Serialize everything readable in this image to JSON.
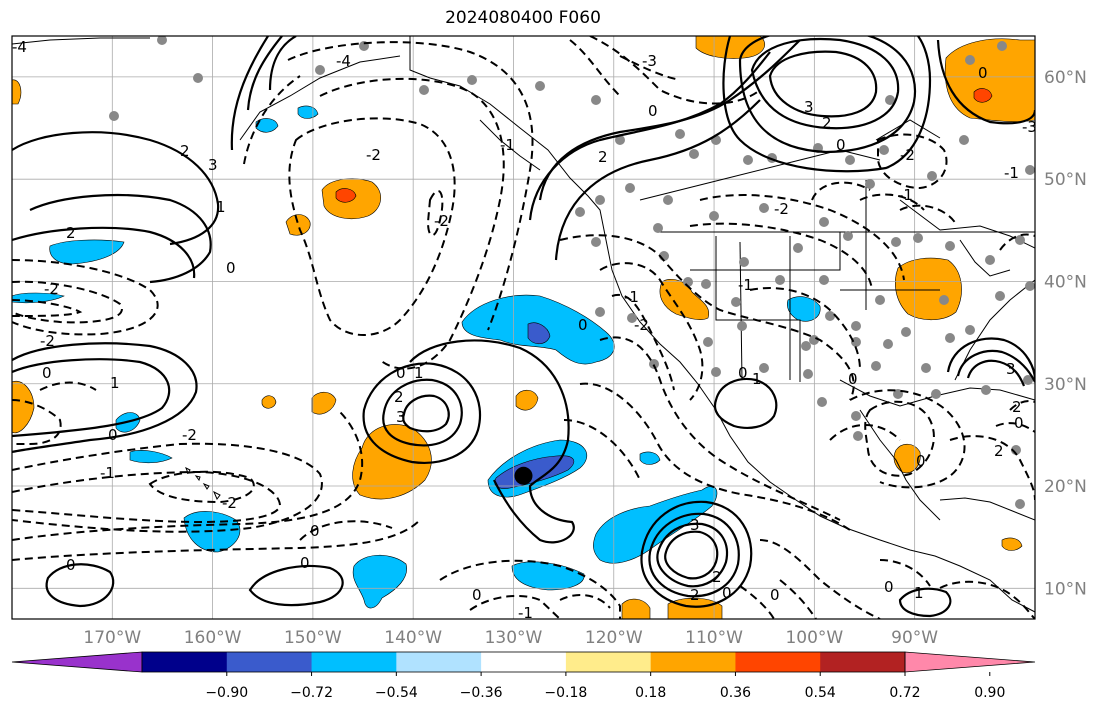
{
  "title": "2024080400 F060",
  "map": {
    "projection": "PlateCarree",
    "lon_range": [
      -180,
      -78
    ],
    "lat_range": [
      7,
      64
    ],
    "gridlines": true,
    "lon_ticks": [
      {
        "lon": -170,
        "label": "170°W"
      },
      {
        "lon": -160,
        "label": "160°W"
      },
      {
        "lon": -150,
        "label": "150°W"
      },
      {
        "lon": -140,
        "label": "140°W"
      },
      {
        "lon": -130,
        "label": "130°W"
      },
      {
        "lon": -120,
        "label": "120°W"
      },
      {
        "lon": -110,
        "label": "110°W"
      },
      {
        "lon": -100,
        "label": "100°W"
      },
      {
        "lon": -90,
        "label": "90°W"
      }
    ],
    "lat_ticks": [
      {
        "lat": 10,
        "label": "10°N"
      },
      {
        "lat": 20,
        "label": "20°N"
      },
      {
        "lat": 30,
        "label": "30°N"
      },
      {
        "lat": 40,
        "label": "40°N"
      },
      {
        "lat": 50,
        "label": "50°N"
      },
      {
        "lat": 60,
        "label": "60°N"
      }
    ],
    "marker": {
      "lon": -129,
      "lat": 21,
      "color": "#000000"
    },
    "contour_labels": [
      "-2",
      "-1",
      "0",
      "1",
      "2",
      "3",
      "-3",
      "-4"
    ]
  },
  "colorbar": {
    "extend": "both",
    "colors": [
      "#9932cc",
      "#00008b",
      "#3a5bcc",
      "#00bfff",
      "#b0e2ff",
      "#ffffff",
      "#ffec8b",
      "#ffa500",
      "#ff4500",
      "#b22222",
      "#ff88aa"
    ],
    "ticks": [
      "−0.90",
      "−0.72",
      "−0.54",
      "−0.36",
      "−0.18",
      "0.18",
      "0.36",
      "0.54",
      "0.72",
      "0.90"
    ]
  }
}
